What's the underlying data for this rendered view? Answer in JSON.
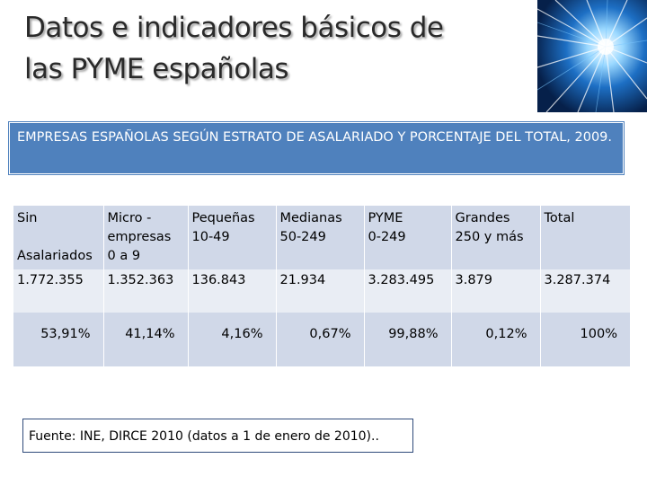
{
  "slide": {
    "title_line1": "Datos e indicadores básicos de",
    "title_line2": "las PYME españolas"
  },
  "caption": "EMPRESAS ESPAÑOLAS SEGÚN ESTRATO DE ASALARIADO Y PORCENTAJE DEL TOTAL, 2009.",
  "table": {
    "headers": [
      {
        "line1": "Sin",
        "line2": "",
        "line3": "Asalariados"
      },
      {
        "line1": "Micro -",
        "line2": "empresas",
        "line3": "0 a 9"
      },
      {
        "line1": "Pequeñas",
        "line2": "10-49",
        "line3": ""
      },
      {
        "line1": "Medianas",
        "line2": "50-249",
        "line3": ""
      },
      {
        "line1": "PYME",
        "line2": "0-249",
        "line3": ""
      },
      {
        "line1": "Grandes",
        "line2": "250 y más",
        "line3": ""
      },
      {
        "line1": "Total",
        "line2": "",
        "line3": ""
      }
    ],
    "counts": [
      "1.772.355",
      "1.352.363",
      "136.843",
      "21.934",
      "3.283.495",
      "3.879",
      "3.287.374"
    ],
    "percentages": [
      "53,91%",
      "41,14%",
      "4,16%",
      "0,67%",
      "99,88%",
      "0,12%",
      "100%"
    ]
  },
  "source": "Fuente: INE, DIRCE 2010 (datos a 1 de enero de 2010)..",
  "colors": {
    "caption_bg": "#4f81bd",
    "header_row_bg": "#d0d8e8",
    "count_row_bg": "#e9edf4",
    "pct_row_bg": "#d0d8e8",
    "source_border": "#2f4a7a"
  },
  "decoration": {
    "icon": "light-burst-image"
  }
}
